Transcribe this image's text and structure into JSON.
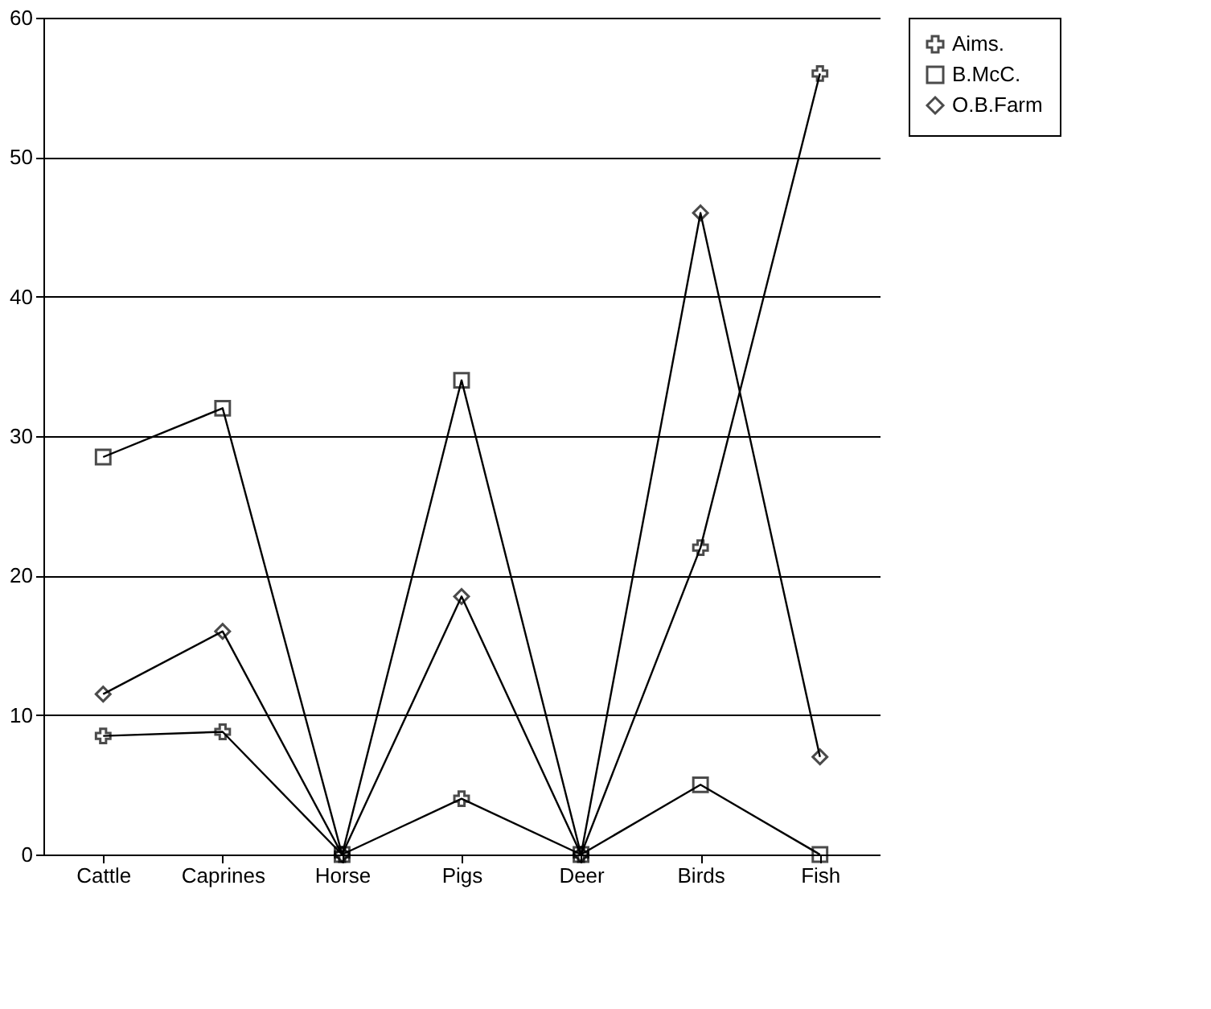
{
  "chart_data": {
    "type": "line",
    "categories": [
      "Cattle",
      "Caprines",
      "Horse",
      "Pigs",
      "Deer",
      "Birds",
      "Fish"
    ],
    "ylim": [
      0,
      60
    ],
    "yticks": [
      0,
      10,
      20,
      30,
      40,
      50,
      60
    ],
    "grid": "y",
    "legend": "top right",
    "line_style": "solid",
    "series": [
      {
        "name": "Aims.",
        "color": "#000000",
        "marker": "cross",
        "values": [
          8.5,
          8.8,
          0,
          4,
          0,
          22,
          56
        ]
      },
      {
        "name": "B.McC.",
        "color": "#000000",
        "marker": "square",
        "values": [
          28.5,
          32,
          0,
          34,
          0,
          5,
          0
        ]
      },
      {
        "name": "O.B.Farm",
        "color": "#000000",
        "marker": "diamond",
        "values": [
          11.5,
          16,
          0,
          18.5,
          0,
          46,
          7
        ]
      }
    ]
  }
}
